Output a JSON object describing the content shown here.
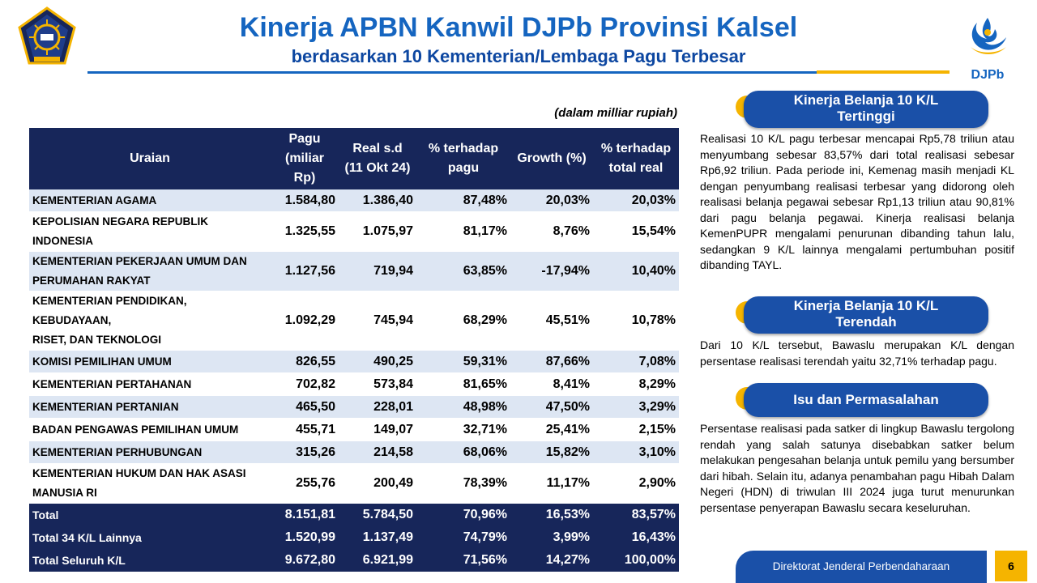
{
  "header": {
    "title": "Kinerja APBN Kanwil DJPb Provinsi Kalsel",
    "subtitle": "berdasarkan 10 Kementerian/Lembaga Pagu Terbesar",
    "logo_right_text": "DJPb"
  },
  "table": {
    "unit_note": "(dalam milliar rupiah)",
    "headers": [
      [
        "Uraian"
      ],
      [
        "Pagu",
        "(miliar Rp)"
      ],
      [
        "Real s.d",
        "(11 Okt 24)"
      ],
      [
        "% terhadap",
        "pagu"
      ],
      [
        "Growth (%)"
      ],
      [
        "% terhadap",
        "total real"
      ]
    ],
    "rows": [
      {
        "name": [
          "KEMENTERIAN AGAMA"
        ],
        "pagu": "1.584,80",
        "real": "1.386,40",
        "pct_pagu": "87,48%",
        "growth": "20,03%",
        "pct_total": "20,03%"
      },
      {
        "name": [
          "KEPOLISIAN NEGARA REPUBLIK INDONESIA"
        ],
        "pagu": "1.325,55",
        "real": "1.075,97",
        "pct_pagu": "81,17%",
        "growth": "8,76%",
        "pct_total": "15,54%"
      },
      {
        "name": [
          "KEMENTERIAN PEKERJAAN UMUM DAN",
          "PERUMAHAN RAKYAT"
        ],
        "pagu": "1.127,56",
        "real": "719,94",
        "pct_pagu": "63,85%",
        "growth": "-17,94%",
        "pct_total": "10,40%"
      },
      {
        "name": [
          "KEMENTERIAN PENDIDIKAN, KEBUDAYAAN,",
          "RISET, DAN TEKNOLOGI"
        ],
        "pagu": "1.092,29",
        "real": "745,94",
        "pct_pagu": "68,29%",
        "growth": "45,51%",
        "pct_total": "10,78%"
      },
      {
        "name": [
          "KOMISI PEMILIHAN UMUM"
        ],
        "pagu": "826,55",
        "real": "490,25",
        "pct_pagu": "59,31%",
        "growth": "87,66%",
        "pct_total": "7,08%"
      },
      {
        "name": [
          "KEMENTERIAN PERTAHANAN"
        ],
        "pagu": "702,82",
        "real": "573,84",
        "pct_pagu": "81,65%",
        "growth": "8,41%",
        "pct_total": "8,29%"
      },
      {
        "name": [
          "KEMENTERIAN PERTANIAN"
        ],
        "pagu": "465,50",
        "real": "228,01",
        "pct_pagu": "48,98%",
        "growth": "47,50%",
        "pct_total": "3,29%"
      },
      {
        "name": [
          "BADAN PENGAWAS PEMILIHAN UMUM"
        ],
        "pagu": "455,71",
        "real": "149,07",
        "pct_pagu": "32,71%",
        "growth": "25,41%",
        "pct_total": "2,15%"
      },
      {
        "name": [
          "KEMENTERIAN PERHUBUNGAN"
        ],
        "pagu": "315,26",
        "real": "214,58",
        "pct_pagu": "68,06%",
        "growth": "15,82%",
        "pct_total": "3,10%"
      },
      {
        "name": [
          "KEMENTERIAN HUKUM DAN HAK ASASI",
          "MANUSIA RI"
        ],
        "pagu": "255,76",
        "real": "200,49",
        "pct_pagu": "78,39%",
        "growth": "11,17%",
        "pct_total": "2,90%"
      }
    ],
    "totals": [
      {
        "name": [
          "Total"
        ],
        "pagu": "8.151,81",
        "real": "5.784,50",
        "pct_pagu": "70,96%",
        "growth": "16,53%",
        "pct_total": "83,57%"
      },
      {
        "name": [
          "Total 34 K/L Lainnya"
        ],
        "pagu": "1.520,99",
        "real": "1.137,49",
        "pct_pagu": "74,79%",
        "growth": "3,99%",
        "pct_total": "16,43%"
      },
      {
        "name": [
          "Total Seluruh K/L"
        ],
        "pagu": "9.672,80",
        "real": "6.921,99",
        "pct_pagu": "71,56%",
        "growth": "14,27%",
        "pct_total": "100,00%"
      }
    ]
  },
  "sections": {
    "highest": {
      "title": [
        "Kinerja Belanja 10 K/L",
        "Tertinggi"
      ],
      "text": "Realisasi 10 K/L pagu terbesar mencapai Rp5,78 triliun atau menyumbang sebesar 83,57% dari total realisasi sebesar Rp6,92 triliun. Pada periode ini, Kemenag masih menjadi KL dengan penyumbang realisasi terbesar yang didorong oleh realisasi belanja pegawai sebesar Rp1,13 triliun atau 90,81% dari pagu belanja pegawai. Kinerja realisasi belanja KemenPUPR mengalami penurunan dibanding tahun lalu, sedangkan 9 K/L lainnya mengalami pertumbuhan positif dibanding TAYL."
    },
    "lowest": {
      "title": [
        "Kinerja Belanja 10 K/L",
        "Terendah"
      ],
      "text": "Dari 10 K/L tersebut, Bawaslu merupakan K/L dengan persentase realisasi terendah yaitu 32,71% terhadap pagu."
    },
    "issues": {
      "title": "Isu dan Permasalahan",
      "text": "Persentase realisasi pada satker di lingkup Bawaslu tergolong rendah yang salah satunya disebabkan satker belum melakukan pengesahan belanja untuk pemilu yang bersumber dari hibah. Selain itu, adanya penambahan pagu Hibah Dalam Negeri (HDN) di triwulan III 2024 juga turut menurunkan persentase penyerapan Bawaslu secara keseluruhan."
    }
  },
  "footer": {
    "org": "Direktorat Jenderal Perbendaharaan",
    "page": "6"
  },
  "colors": {
    "title_blue": "#1565c0",
    "table_header_navy": "#17265a",
    "row_stripe": "#dde6f3",
    "pill_blue": "#1a50a8",
    "accent_yellow": "#f5b400"
  }
}
